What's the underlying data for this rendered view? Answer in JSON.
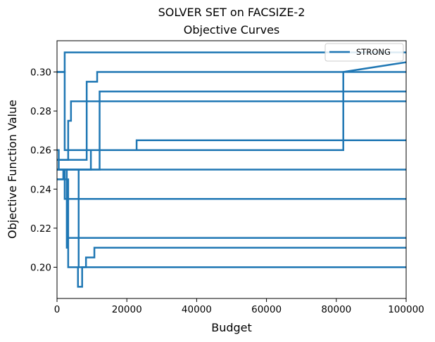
{
  "chart_data": {
    "type": "line",
    "title": "SOLVER SET on FACSIZE-2",
    "subtitle": "Objective Curves",
    "xlabel": "Budget",
    "ylabel": "Objective Function Value",
    "xlim": [
      0,
      100000
    ],
    "ylim": [
      0.184,
      0.316
    ],
    "xticks": [
      0,
      20000,
      40000,
      60000,
      80000,
      100000
    ],
    "yticks": [
      0.2,
      0.22,
      0.24,
      0.26,
      0.28,
      0.3
    ],
    "grid": false,
    "line_color": "#1f77b4",
    "legend": {
      "placement": "top-right",
      "entries": [
        "STRONG"
      ]
    },
    "series": [
      {
        "name": "STRONG",
        "x": [
          0,
          2200,
          2200,
          100000
        ],
        "y": [
          0.3,
          0.3,
          0.31,
          0.31
        ]
      },
      {
        "x": [
          0,
          2200,
          2200,
          82000,
          82000,
          100000
        ],
        "y": [
          0.3,
          0.3,
          0.26,
          0.26,
          0.3,
          0.305
        ]
      },
      {
        "x": [
          0,
          8500,
          8500,
          11500,
          11500,
          100000
        ],
        "y": [
          0.255,
          0.255,
          0.295,
          0.295,
          0.3,
          0.3
        ]
      },
      {
        "x": [
          0,
          12200,
          12200,
          100000
        ],
        "y": [
          0.25,
          0.25,
          0.29,
          0.29
        ]
      },
      {
        "x": [
          0,
          3200,
          3200,
          4000,
          4000,
          100000
        ],
        "y": [
          0.255,
          0.255,
          0.275,
          0.275,
          0.285,
          0.285
        ]
      },
      {
        "x": [
          0,
          9700,
          9700,
          22800,
          22800,
          100000
        ],
        "y": [
          0.25,
          0.25,
          0.26,
          0.26,
          0.265,
          0.265
        ]
      },
      {
        "x": [
          0,
          500,
          500,
          100000
        ],
        "y": [
          0.26,
          0.26,
          0.25,
          0.25
        ]
      },
      {
        "x": [
          0,
          1800,
          1800,
          2200,
          2200,
          100000
        ],
        "y": [
          0.245,
          0.245,
          0.25,
          0.25,
          0.235,
          0.235
        ]
      },
      {
        "x": [
          0,
          2800,
          2800,
          3000,
          3000,
          100000
        ],
        "y": [
          0.25,
          0.25,
          0.21,
          0.21,
          0.215,
          0.215
        ]
      },
      {
        "x": [
          0,
          3200,
          3200,
          6000,
          6000,
          7200,
          7200,
          8300,
          8300,
          10700,
          10700,
          100000
        ],
        "y": [
          0.245,
          0.245,
          0.2,
          0.2,
          0.19,
          0.19,
          0.2,
          0.2,
          0.205,
          0.205,
          0.21,
          0.21
        ]
      },
      {
        "x": [
          0,
          6200,
          6200,
          100000
        ],
        "y": [
          0.25,
          0.25,
          0.2,
          0.2
        ]
      }
    ]
  }
}
